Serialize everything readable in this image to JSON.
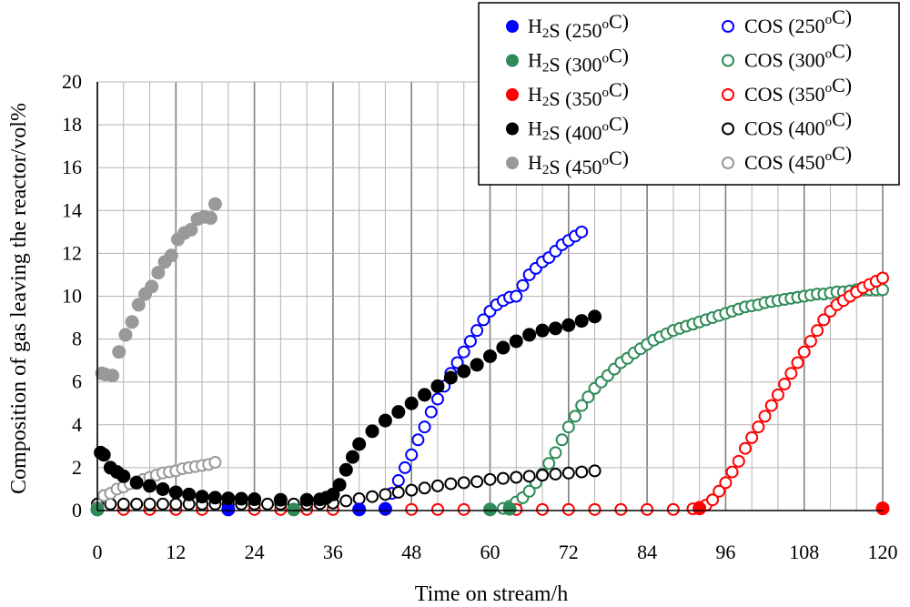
{
  "chart_data": {
    "type": "scatter",
    "title": "",
    "xlabel": "Time on stream/h",
    "ylabel": "Composition of gas leaving the reactor/vol%",
    "xlim": [
      0,
      120
    ],
    "ylim": [
      0,
      20
    ],
    "x_ticks": [
      0,
      12,
      24,
      36,
      48,
      60,
      72,
      84,
      96,
      108,
      120
    ],
    "y_ticks": [
      0,
      2,
      4,
      6,
      8,
      10,
      12,
      14,
      16,
      18,
      20
    ],
    "x_minor_step": 4,
    "y_minor_step": 2,
    "grid": true,
    "legend_position": "top-right",
    "series": [
      {
        "name": "H2S (250oC)",
        "label": {
          "gas": "H",
          "sub": "2",
          "tail": "S (250",
          "sup": "o",
          "end": "C)"
        },
        "color": "#0000ff",
        "marker": "filled",
        "points": [
          [
            0,
            0.05
          ],
          [
            20,
            0.05
          ],
          [
            40,
            0.05
          ],
          [
            44,
            0.08
          ]
        ]
      },
      {
        "name": "H2S (300oC)",
        "label": {
          "gas": "H",
          "sub": "2",
          "tail": "S (300",
          "sup": "o",
          "end": "C)"
        },
        "color": "#2e8b57",
        "marker": "filled",
        "points": [
          [
            0,
            0.05
          ],
          [
            30,
            0.05
          ],
          [
            60,
            0.05
          ],
          [
            63,
            0.08
          ]
        ]
      },
      {
        "name": "H2S (350oC)",
        "label": {
          "gas": "H",
          "sub": "2",
          "tail": "S (350",
          "sup": "o",
          "end": "C)"
        },
        "color": "#ff0000",
        "marker": "filled",
        "points": [
          [
            92,
            0.1
          ],
          [
            120,
            0.1
          ]
        ]
      },
      {
        "name": "H2S (400oC)",
        "label": {
          "gas": "H",
          "sub": "2",
          "tail": "S (400",
          "sup": "o",
          "end": "C)"
        },
        "color": "#000000",
        "marker": "filled",
        "points": [
          [
            0.5,
            2.7
          ],
          [
            1,
            2.6
          ],
          [
            2,
            2.0
          ],
          [
            3,
            1.8
          ],
          [
            4,
            1.6
          ],
          [
            6,
            1.3
          ],
          [
            8,
            1.15
          ],
          [
            10,
            1.0
          ],
          [
            12,
            0.85
          ],
          [
            14,
            0.75
          ],
          [
            16,
            0.65
          ],
          [
            18,
            0.6
          ],
          [
            20,
            0.57
          ],
          [
            22,
            0.55
          ],
          [
            24,
            0.53
          ],
          [
            28,
            0.5
          ],
          [
            32,
            0.5
          ],
          [
            34,
            0.52
          ],
          [
            35,
            0.6
          ],
          [
            36,
            0.75
          ],
          [
            37,
            1.2
          ],
          [
            38,
            1.9
          ],
          [
            39,
            2.5
          ],
          [
            40,
            3.1
          ],
          [
            42,
            3.7
          ],
          [
            44,
            4.2
          ],
          [
            46,
            4.6
          ],
          [
            48,
            5.0
          ],
          [
            50,
            5.4
          ],
          [
            52,
            5.8
          ],
          [
            54,
            6.2
          ],
          [
            56,
            6.5
          ],
          [
            58,
            6.8
          ],
          [
            60,
            7.2
          ],
          [
            62,
            7.6
          ],
          [
            64,
            7.9
          ],
          [
            66,
            8.2
          ],
          [
            68,
            8.4
          ],
          [
            70,
            8.5
          ],
          [
            72,
            8.65
          ],
          [
            74,
            8.85
          ],
          [
            76,
            9.05
          ]
        ]
      },
      {
        "name": "H2S (450oC)",
        "label": {
          "gas": "H",
          "sub": "2",
          "tail": "S (450",
          "sup": "o",
          "end": "C)"
        },
        "color": "#999999",
        "marker": "filled",
        "points": [
          [
            0.7,
            6.4
          ],
          [
            1.2,
            6.35
          ],
          [
            2.3,
            6.3
          ],
          [
            3.3,
            7.4
          ],
          [
            4.3,
            8.2
          ],
          [
            5.3,
            8.8
          ],
          [
            6.3,
            9.6
          ],
          [
            7.3,
            10.1
          ],
          [
            8.3,
            10.45
          ],
          [
            9.3,
            11.1
          ],
          [
            10.3,
            11.6
          ],
          [
            11.3,
            11.9
          ],
          [
            12.3,
            12.65
          ],
          [
            13.3,
            12.95
          ],
          [
            14.3,
            13.1
          ],
          [
            15.3,
            13.6
          ],
          [
            16.3,
            13.7
          ],
          [
            17.3,
            13.65
          ],
          [
            18.0,
            14.3
          ]
        ]
      },
      {
        "name": "COS (250oC)",
        "label": {
          "gas": "COS",
          "sub": "",
          "tail": " (250",
          "sup": "o",
          "end": "C)"
        },
        "color": "#0000ff",
        "marker": "open",
        "points": [
          [
            45,
            0.8
          ],
          [
            46,
            1.4
          ],
          [
            47,
            2.0
          ],
          [
            48,
            2.6
          ],
          [
            49,
            3.3
          ],
          [
            50,
            3.9
          ],
          [
            51,
            4.6
          ],
          [
            52,
            5.2
          ],
          [
            53,
            5.8
          ],
          [
            54,
            6.4
          ],
          [
            55,
            6.9
          ],
          [
            56,
            7.4
          ],
          [
            57,
            7.9
          ],
          [
            58,
            8.4
          ],
          [
            59,
            8.9
          ],
          [
            60,
            9.3
          ],
          [
            61,
            9.6
          ],
          [
            62,
            9.8
          ],
          [
            63,
            9.95
          ],
          [
            64,
            10.0
          ],
          [
            65,
            10.5
          ],
          [
            66,
            11.0
          ],
          [
            67,
            11.3
          ],
          [
            68,
            11.6
          ],
          [
            69,
            11.8
          ],
          [
            70,
            12.1
          ],
          [
            71,
            12.4
          ],
          [
            72,
            12.6
          ],
          [
            73,
            12.8
          ],
          [
            74,
            13.0
          ]
        ]
      },
      {
        "name": "COS (300oC)",
        "label": {
          "gas": "COS",
          "sub": "",
          "tail": " (300",
          "sup": "o",
          "end": "C)"
        },
        "color": "#2e8b57",
        "marker": "open",
        "points": [
          [
            62,
            0.1
          ],
          [
            63,
            0.2
          ],
          [
            64,
            0.4
          ],
          [
            65,
            0.6
          ],
          [
            66,
            0.9
          ],
          [
            67,
            1.3
          ],
          [
            68,
            1.7
          ],
          [
            69,
            2.2
          ],
          [
            70,
            2.7
          ],
          [
            71,
            3.3
          ],
          [
            72,
            3.9
          ],
          [
            73,
            4.4
          ],
          [
            74,
            4.9
          ],
          [
            75,
            5.3
          ],
          [
            76,
            5.7
          ],
          [
            77,
            6.0
          ],
          [
            78,
            6.3
          ],
          [
            79,
            6.6
          ],
          [
            80,
            6.9
          ],
          [
            81,
            7.1
          ],
          [
            82,
            7.35
          ],
          [
            83,
            7.55
          ],
          [
            84,
            7.75
          ],
          [
            85,
            7.95
          ],
          [
            86,
            8.1
          ],
          [
            87,
            8.25
          ],
          [
            88,
            8.4
          ],
          [
            89,
            8.5
          ],
          [
            90,
            8.6
          ],
          [
            91,
            8.7
          ],
          [
            92,
            8.8
          ],
          [
            93,
            8.9
          ],
          [
            94,
            9.0
          ],
          [
            95,
            9.1
          ],
          [
            96,
            9.2
          ],
          [
            97,
            9.3
          ],
          [
            98,
            9.4
          ],
          [
            99,
            9.5
          ],
          [
            100,
            9.55
          ],
          [
            101,
            9.6
          ],
          [
            102,
            9.7
          ],
          [
            103,
            9.75
          ],
          [
            104,
            9.8
          ],
          [
            105,
            9.85
          ],
          [
            106,
            9.9
          ],
          [
            107,
            9.95
          ],
          [
            108,
            10.0
          ],
          [
            109,
            10.05
          ],
          [
            110,
            10.1
          ],
          [
            111,
            10.1
          ],
          [
            112,
            10.15
          ],
          [
            113,
            10.2
          ],
          [
            114,
            10.2
          ],
          [
            115,
            10.25
          ],
          [
            116,
            10.3
          ],
          [
            117,
            10.3
          ],
          [
            118,
            10.3
          ],
          [
            119,
            10.3
          ],
          [
            120,
            10.3
          ]
        ]
      },
      {
        "name": "COS (350oC)",
        "label": {
          "gas": "COS",
          "sub": "",
          "tail": " (350",
          "sup": "o",
          "end": "C)"
        },
        "color": "#ff0000",
        "marker": "open",
        "points": [
          [
            0,
            0.05
          ],
          [
            4,
            0.05
          ],
          [
            8,
            0.05
          ],
          [
            12,
            0.05
          ],
          [
            16,
            0.05
          ],
          [
            20,
            0.05
          ],
          [
            24,
            0.05
          ],
          [
            28,
            0.05
          ],
          [
            32,
            0.05
          ],
          [
            36,
            0.05
          ],
          [
            40,
            0.05
          ],
          [
            44,
            0.05
          ],
          [
            48,
            0.05
          ],
          [
            52,
            0.05
          ],
          [
            56,
            0.05
          ],
          [
            60,
            0.05
          ],
          [
            64,
            0.05
          ],
          [
            68,
            0.05
          ],
          [
            72,
            0.05
          ],
          [
            76,
            0.05
          ],
          [
            80,
            0.05
          ],
          [
            84,
            0.05
          ],
          [
            88,
            0.05
          ],
          [
            91,
            0.08
          ],
          [
            92,
            0.15
          ],
          [
            93,
            0.25
          ],
          [
            94,
            0.5
          ],
          [
            95,
            0.9
          ],
          [
            96,
            1.3
          ],
          [
            97,
            1.8
          ],
          [
            98,
            2.3
          ],
          [
            99,
            2.9
          ],
          [
            100,
            3.4
          ],
          [
            101,
            3.9
          ],
          [
            102,
            4.4
          ],
          [
            103,
            4.9
          ],
          [
            104,
            5.4
          ],
          [
            105,
            5.9
          ],
          [
            106,
            6.4
          ],
          [
            107,
            6.9
          ],
          [
            108,
            7.4
          ],
          [
            109,
            7.9
          ],
          [
            110,
            8.4
          ],
          [
            111,
            8.9
          ],
          [
            112,
            9.3
          ],
          [
            113,
            9.6
          ],
          [
            114,
            9.8
          ],
          [
            115,
            10.0
          ],
          [
            116,
            10.2
          ],
          [
            117,
            10.4
          ],
          [
            118,
            10.55
          ],
          [
            119,
            10.7
          ],
          [
            120,
            10.85
          ]
        ]
      },
      {
        "name": "COS (400oC)",
        "label": {
          "gas": "COS",
          "sub": "",
          "tail": " (400",
          "sup": "o",
          "end": "C)"
        },
        "color": "#000000",
        "marker": "open",
        "points": [
          [
            0,
            0.3
          ],
          [
            2,
            0.3
          ],
          [
            4,
            0.3
          ],
          [
            6,
            0.3
          ],
          [
            8,
            0.3
          ],
          [
            10,
            0.3
          ],
          [
            12,
            0.3
          ],
          [
            14,
            0.3
          ],
          [
            16,
            0.3
          ],
          [
            18,
            0.3
          ],
          [
            20,
            0.3
          ],
          [
            22,
            0.3
          ],
          [
            24,
            0.3
          ],
          [
            26,
            0.3
          ],
          [
            28,
            0.3
          ],
          [
            30,
            0.3
          ],
          [
            32,
            0.3
          ],
          [
            34,
            0.32
          ],
          [
            36,
            0.35
          ],
          [
            38,
            0.45
          ],
          [
            40,
            0.55
          ],
          [
            42,
            0.65
          ],
          [
            44,
            0.75
          ],
          [
            46,
            0.85
          ],
          [
            48,
            0.95
          ],
          [
            50,
            1.05
          ],
          [
            52,
            1.15
          ],
          [
            54,
            1.25
          ],
          [
            56,
            1.3
          ],
          [
            58,
            1.35
          ],
          [
            60,
            1.45
          ],
          [
            62,
            1.5
          ],
          [
            64,
            1.55
          ],
          [
            66,
            1.6
          ],
          [
            68,
            1.65
          ],
          [
            70,
            1.7
          ],
          [
            72,
            1.75
          ],
          [
            74,
            1.8
          ],
          [
            76,
            1.85
          ]
        ]
      },
      {
        "name": "COS (450oC)",
        "label": {
          "gas": "COS",
          "sub": "",
          "tail": " (450",
          "sup": "o",
          "end": "C)"
        },
        "color": "#999999",
        "marker": "open",
        "points": [
          [
            0,
            0.15
          ],
          [
            1,
            0.7
          ],
          [
            2,
            0.8
          ],
          [
            3,
            1.0
          ],
          [
            4,
            1.1
          ],
          [
            5,
            1.25
          ],
          [
            6,
            1.35
          ],
          [
            7,
            1.45
          ],
          [
            8,
            1.55
          ],
          [
            9,
            1.65
          ],
          [
            10,
            1.75
          ],
          [
            11,
            1.8
          ],
          [
            12,
            1.85
          ],
          [
            13,
            1.95
          ],
          [
            14,
            2.0
          ],
          [
            15,
            2.05
          ],
          [
            16,
            2.1
          ],
          [
            17,
            2.15
          ],
          [
            18,
            2.25
          ]
        ]
      }
    ]
  }
}
